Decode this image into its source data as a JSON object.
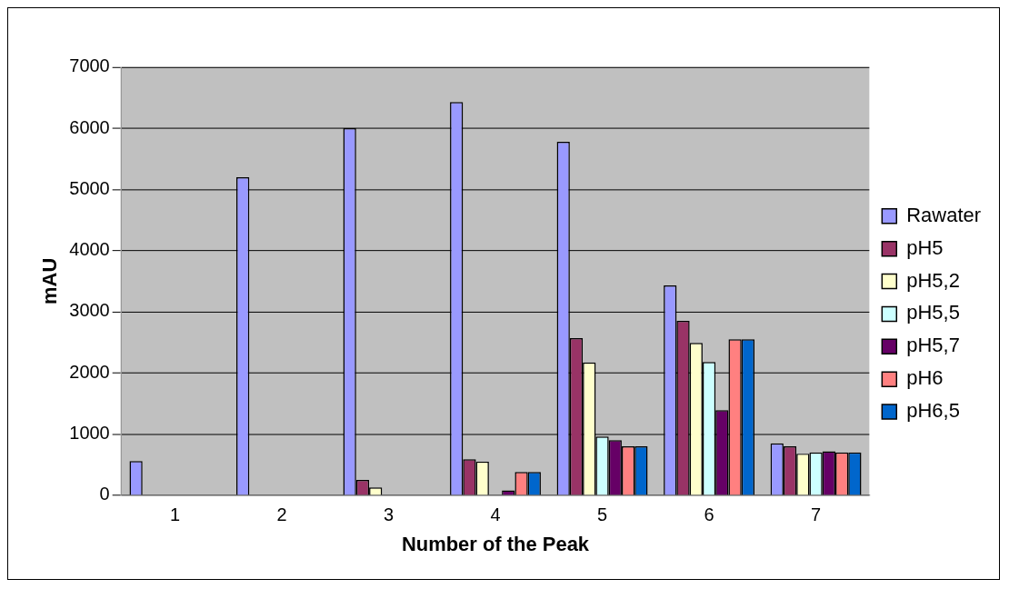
{
  "chart_data": {
    "type": "bar",
    "xlabel": "Number of the Peak",
    "ylabel": "mAU",
    "categories": [
      "1",
      "2",
      "3",
      "4",
      "5",
      "6",
      "7"
    ],
    "series": [
      {
        "name": "Rawater",
        "color": "#9999ff",
        "values": [
          560,
          5200,
          6000,
          6430,
          5780,
          3430,
          850
        ]
      },
      {
        "name": "pH5",
        "color": "#993366",
        "values": [
          0,
          0,
          250,
          590,
          2570,
          2850,
          800
        ]
      },
      {
        "name": "pH5,2",
        "color": "#ffffcc",
        "values": [
          0,
          0,
          130,
          550,
          2170,
          2490,
          680
        ]
      },
      {
        "name": "pH5,5",
        "color": "#ccffff",
        "values": [
          0,
          0,
          0,
          0,
          960,
          2180,
          700
        ]
      },
      {
        "name": "pH5,7",
        "color": "#660066",
        "values": [
          0,
          0,
          0,
          80,
          900,
          1390,
          720
        ]
      },
      {
        "name": "pH6",
        "color": "#ff8080",
        "values": [
          0,
          0,
          0,
          380,
          800,
          2550,
          700
        ]
      },
      {
        "name": "pH6,5",
        "color": "#0066cc",
        "values": [
          0,
          0,
          0,
          380,
          800,
          2550,
          700
        ]
      }
    ],
    "ylim": [
      0,
      7000
    ],
    "yticks": [
      0,
      1000,
      2000,
      3000,
      4000,
      5000,
      6000,
      7000
    ],
    "grid": "y",
    "legend": "right"
  }
}
